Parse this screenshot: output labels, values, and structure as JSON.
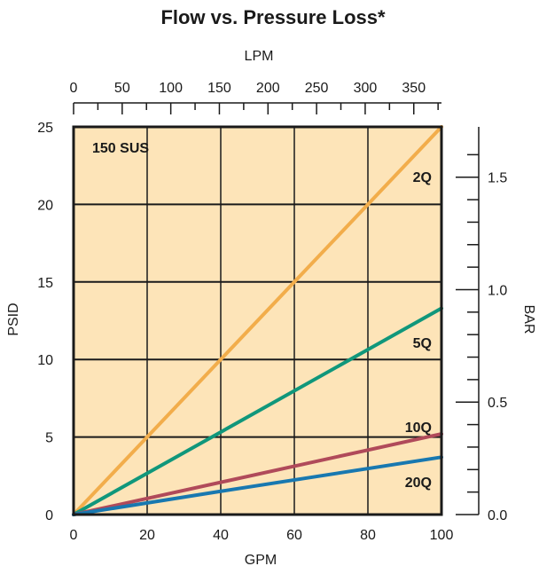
{
  "chart_data": {
    "type": "line",
    "title": "Flow vs. Pressure Loss*",
    "annotation": "150 SUS",
    "xlabel": "GPM",
    "ylabel": "PSID",
    "top_axis_label": "LPM",
    "right_axis_label": "BAR",
    "xlim": [
      0,
      100
    ],
    "ylim": [
      0,
      25
    ],
    "top_xlim_lpm": [
      0,
      378.5
    ],
    "right_ylim_bar": [
      0,
      1.7237
    ],
    "x_ticks": [
      0,
      20,
      40,
      60,
      80,
      100
    ],
    "y_ticks": [
      0,
      5,
      10,
      15,
      20,
      25
    ],
    "top_ticks": [
      0,
      50,
      100,
      150,
      200,
      250,
      300,
      350
    ],
    "right_major_ticks": [
      0.0,
      0.5,
      1.0,
      1.5
    ],
    "right_minor_ticks": [
      0.1,
      0.2,
      0.3,
      0.4,
      0.6,
      0.7,
      0.8,
      0.9,
      1.1,
      1.2,
      1.3,
      1.4,
      1.6
    ],
    "x_tick_labels": [
      "0",
      "20",
      "40",
      "60",
      "80",
      "100"
    ],
    "y_tick_labels": [
      "0",
      "5",
      "10",
      "15",
      "20",
      "25"
    ],
    "top_tick_labels": [
      "0",
      "50",
      "100",
      "150",
      "200",
      "250",
      "300",
      "350"
    ],
    "right_tick_labels": [
      "0.0",
      "0.5",
      "1.0",
      "1.5"
    ],
    "grid": true,
    "background_color": "#fde4b8",
    "series": [
      {
        "name": "2Q",
        "color": "#f2ad4b",
        "x": [
          0,
          100
        ],
        "y": [
          0,
          25
        ]
      },
      {
        "name": "5Q",
        "color": "#10977b",
        "x": [
          0,
          100
        ],
        "y": [
          0,
          13.3
        ]
      },
      {
        "name": "10Q",
        "color": "#b04a5a",
        "x": [
          0,
          100
        ],
        "y": [
          0,
          5.2
        ]
      },
      {
        "name": "20Q",
        "color": "#1878b0",
        "x": [
          0,
          40,
          100
        ],
        "y": [
          0,
          1.5,
          3.7
        ]
      }
    ]
  }
}
